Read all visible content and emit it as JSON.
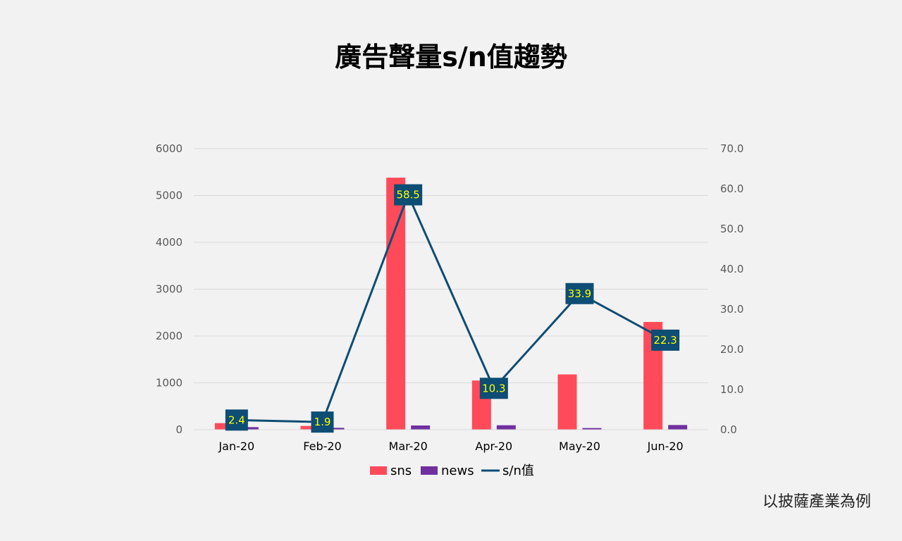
{
  "title": "廣告聲量s/n值趨勢",
  "footnote": "以披薩產業為例",
  "chart_data": {
    "type": "bar",
    "categories": [
      "Jan-20",
      "Feb-20",
      "Mar-20",
      "Apr-20",
      "May-20",
      "Jun-20"
    ],
    "series": [
      {
        "name": "sns",
        "kind": "bar",
        "axis": "left",
        "color": "#ff4a5a",
        "values": [
          140,
          80,
          5380,
          1050,
          1180,
          2300
        ]
      },
      {
        "name": "news",
        "kind": "bar",
        "axis": "left",
        "color": "#7030a0",
        "values": [
          55,
          40,
          90,
          95,
          35,
          100
        ]
      },
      {
        "name": "s/n值",
        "kind": "line",
        "axis": "right",
        "color": "#0e4d74",
        "values": [
          2.4,
          1.9,
          58.5,
          10.3,
          33.9,
          22.3
        ],
        "labels": [
          "2.4",
          "1.9",
          "58.5",
          "10.3",
          "33.9",
          "22.3"
        ]
      }
    ],
    "y_left": {
      "min": 0,
      "max": 6000,
      "ticks": [
        "0",
        "1000",
        "2000",
        "3000",
        "4000",
        "5000",
        "6000"
      ]
    },
    "y_right": {
      "min": 0,
      "max": 70,
      "ticks": [
        "0.0",
        "10.0",
        "20.0",
        "30.0",
        "40.0",
        "50.0",
        "60.0",
        "70.0"
      ]
    },
    "grid": true,
    "legend_position": "bottom"
  }
}
